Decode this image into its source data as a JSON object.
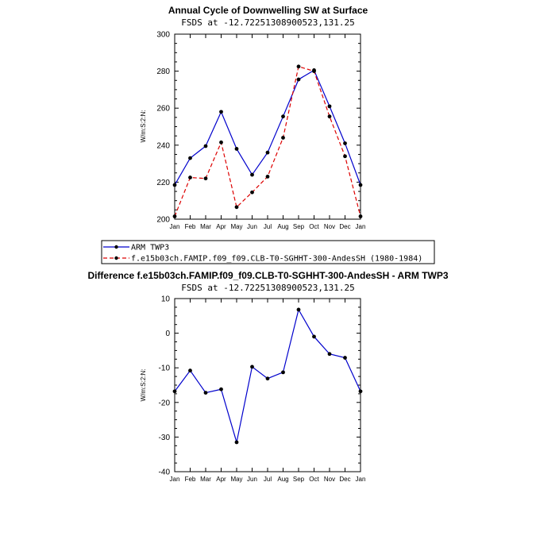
{
  "chart_data": [
    {
      "type": "line",
      "title": "Annual Cycle of Downwelling SW at Surface",
      "subtitle": "FSDS at -12.72251308900523,131.25",
      "ylabel": "W/m:S:2:N:",
      "ylim": [
        200,
        300
      ],
      "yticks": [
        200,
        220,
        240,
        260,
        280,
        300
      ],
      "categories": [
        "Jan",
        "Feb",
        "Mar",
        "Apr",
        "May",
        "Jun",
        "Jul",
        "Aug",
        "Sep",
        "Oct",
        "Nov",
        "Dec",
        "Jan"
      ],
      "series": [
        {
          "name": "ARM TWP3",
          "color": "#0000cc",
          "dash": "solid",
          "values": [
            218.5,
            233.0,
            239.5,
            258.0,
            238.0,
            224.0,
            236.0,
            255.5,
            275.5,
            280.5,
            261.0,
            241.0,
            218.5
          ]
        },
        {
          "name": "f.e15b03ch.FAMIP.f09_f09.CLB-T0-SGHHT-300-AndesSH (1980-1984)",
          "color": "#dd0000",
          "dash": "dashed",
          "values": [
            201.5,
            222.5,
            222.0,
            241.5,
            206.5,
            214.5,
            223.0,
            244.0,
            282.5,
            280.0,
            255.5,
            234.0,
            201.5
          ]
        }
      ]
    },
    {
      "type": "line",
      "title": "Difference f.e15b03ch.FAMIP.f09_f09.CLB-T0-SGHHT-300-AndesSH - ARM TWP3",
      "subtitle": "FSDS at -12.72251308900523,131.25",
      "ylabel": "W/m:S:2:N:",
      "ylim": [
        -40,
        10
      ],
      "yticks": [
        -40,
        -30,
        -20,
        -10,
        0,
        10
      ],
      "categories": [
        "Jan",
        "Feb",
        "Mar",
        "Apr",
        "May",
        "Jun",
        "Jul",
        "Aug",
        "Sep",
        "Oct",
        "Nov",
        "Dec",
        "Jan"
      ],
      "series": [
        {
          "name": "Difference",
          "color": "#0000cc",
          "dash": "solid",
          "values": [
            -16.8,
            -10.8,
            -17.2,
            -16.2,
            -31.5,
            -9.7,
            -13.1,
            -11.3,
            6.8,
            -1.0,
            -6.0,
            -7.1,
            -16.8
          ]
        }
      ]
    }
  ]
}
